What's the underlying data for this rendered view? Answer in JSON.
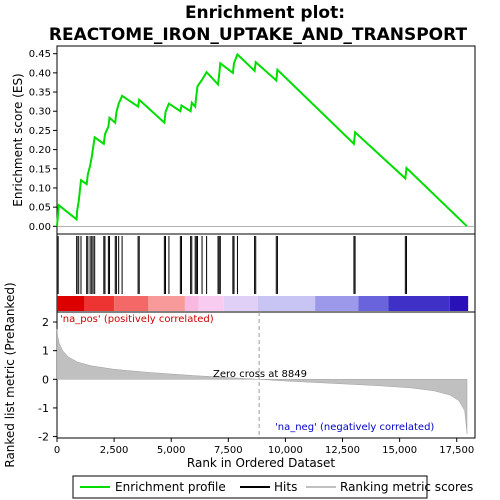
{
  "chart_data": {
    "type": "line",
    "title_line1": "Enrichment plot:",
    "title_line2": "REACTOME_IRON_UPTAKE_AND_TRANSPORT",
    "top_panel": {
      "ylabel": "Enrichment score (ES)",
      "ylim": [
        -0.02,
        0.47
      ],
      "yticks": [
        "0.00",
        "0.05",
        "0.10",
        "0.15",
        "0.20",
        "0.25",
        "0.30",
        "0.35",
        "0.40",
        "0.45"
      ],
      "ytick_values": [
        0,
        0.05,
        0.1,
        0.15,
        0.2,
        0.25,
        0.3,
        0.35,
        0.4,
        0.45
      ],
      "series": [
        {
          "name": "Enrichment profile",
          "color": "#00dd00",
          "points": [
            [
              0,
              0
            ],
            [
              80,
              0.055
            ],
            [
              860,
              0.018
            ],
            [
              880,
              0.04
            ],
            [
              950,
              0.065
            ],
            [
              1050,
              0.12
            ],
            [
              1300,
              0.11
            ],
            [
              1350,
              0.135
            ],
            [
              1450,
              0.158
            ],
            [
              1520,
              0.18
            ],
            [
              1580,
              0.205
            ],
            [
              1650,
              0.232
            ],
            [
              2050,
              0.215
            ],
            [
              2100,
              0.24
            ],
            [
              2250,
              0.26
            ],
            [
              2300,
              0.283
            ],
            [
              2550,
              0.27
            ],
            [
              2600,
              0.297
            ],
            [
              2700,
              0.32
            ],
            [
              2850,
              0.34
            ],
            [
              3550,
              0.312
            ],
            [
              3600,
              0.33
            ],
            [
              4700,
              0.27
            ],
            [
              4750,
              0.298
            ],
            [
              4900,
              0.32
            ],
            [
              5400,
              0.3
            ],
            [
              5450,
              0.315
            ],
            [
              5850,
              0.3
            ],
            [
              5900,
              0.322
            ],
            [
              6050,
              0.312
            ],
            [
              6100,
              0.34
            ],
            [
              6150,
              0.365
            ],
            [
              6350,
              0.382
            ],
            [
              6550,
              0.402
            ],
            [
              7050,
              0.37
            ],
            [
              7100,
              0.396
            ],
            [
              7150,
              0.425
            ],
            [
              7700,
              0.4
            ],
            [
              7750,
              0.425
            ],
            [
              7900,
              0.448
            ],
            [
              8650,
              0.405
            ],
            [
              8700,
              0.428
            ],
            [
              9600,
              0.38
            ],
            [
              9650,
              0.408
            ],
            [
              13000,
              0.215
            ],
            [
              13050,
              0.245
            ],
            [
              15250,
              0.125
            ],
            [
              15300,
              0.152
            ],
            [
              17950,
              0
            ]
          ]
        }
      ]
    },
    "hits": [
      50,
      860,
      880,
      950,
      1050,
      1300,
      1350,
      1450,
      1520,
      1580,
      1650,
      2050,
      2100,
      2250,
      2300,
      2550,
      2600,
      2700,
      2850,
      3550,
      3600,
      4700,
      4750,
      4900,
      5400,
      5450,
      5850,
      5900,
      6050,
      6100,
      6150,
      6350,
      6550,
      7050,
      7100,
      7150,
      7700,
      7750,
      7900,
      8650,
      8700,
      9600,
      9650,
      13000,
      13050,
      15250,
      15300
    ],
    "heat_bar": {
      "colors": [
        "#dd0000",
        "#ee3333",
        "#f56868",
        "#f89a9a",
        "#f8b8e0",
        "#f8ccf0",
        "#e0d0f8",
        "#c8c4f4",
        "#9c98ea",
        "#6a64dc",
        "#3f30c8",
        "#2a10b8"
      ],
      "breaks": [
        0,
        1200,
        2500,
        4000,
        5600,
        6200,
        7300,
        8800,
        11300,
        13200,
        14500,
        17200,
        18000
      ]
    },
    "bottom_panel": {
      "ylabel": "Ranked list metric (PreRanked)",
      "xlabel": "Rank in Ordered Dataset",
      "ylim": [
        -2.05,
        2.35
      ],
      "yticks": [
        "-2",
        "-1",
        "0",
        "1",
        "2"
      ],
      "ytick_values": [
        -2,
        -1,
        0,
        1,
        2
      ],
      "zero_cross_label": "Zero cross at 8849",
      "zero_cross": 8849,
      "pos_label": "'na_pos' (positively correlated)",
      "neg_label": "'na_neg' (negatively correlated)",
      "fill_color": "#c0c0c0",
      "metric_points": [
        [
          0,
          1.75
        ],
        [
          30,
          1.5
        ],
        [
          100,
          1.25
        ],
        [
          250,
          1.0
        ],
        [
          500,
          0.78
        ],
        [
          900,
          0.6
        ],
        [
          1500,
          0.47
        ],
        [
          2500,
          0.35
        ],
        [
          4000,
          0.24
        ],
        [
          6000,
          0.13
        ],
        [
          8000,
          0.04
        ],
        [
          8849,
          0
        ],
        [
          10000,
          -0.06
        ],
        [
          12000,
          -0.14
        ],
        [
          14000,
          -0.22
        ],
        [
          15500,
          -0.3
        ],
        [
          16500,
          -0.4
        ],
        [
          17200,
          -0.55
        ],
        [
          17600,
          -0.75
        ],
        [
          17850,
          -1.1
        ],
        [
          17950,
          -1.9
        ]
      ]
    },
    "xlim": [
      0,
      18300
    ],
    "xticks": [
      "0",
      "2,500",
      "5,000",
      "7,500",
      "10,000",
      "12,500",
      "15,000",
      "17,500"
    ],
    "xtick_values": [
      0,
      2500,
      5000,
      7500,
      10000,
      12500,
      15000,
      17500
    ],
    "legend": {
      "items": [
        {
          "label": "Enrichment profile",
          "color": "#00dd00"
        },
        {
          "label": "Hits",
          "color": "#000000"
        },
        {
          "label": "Ranking metric scores",
          "color": "#c0c0c0"
        }
      ]
    }
  }
}
